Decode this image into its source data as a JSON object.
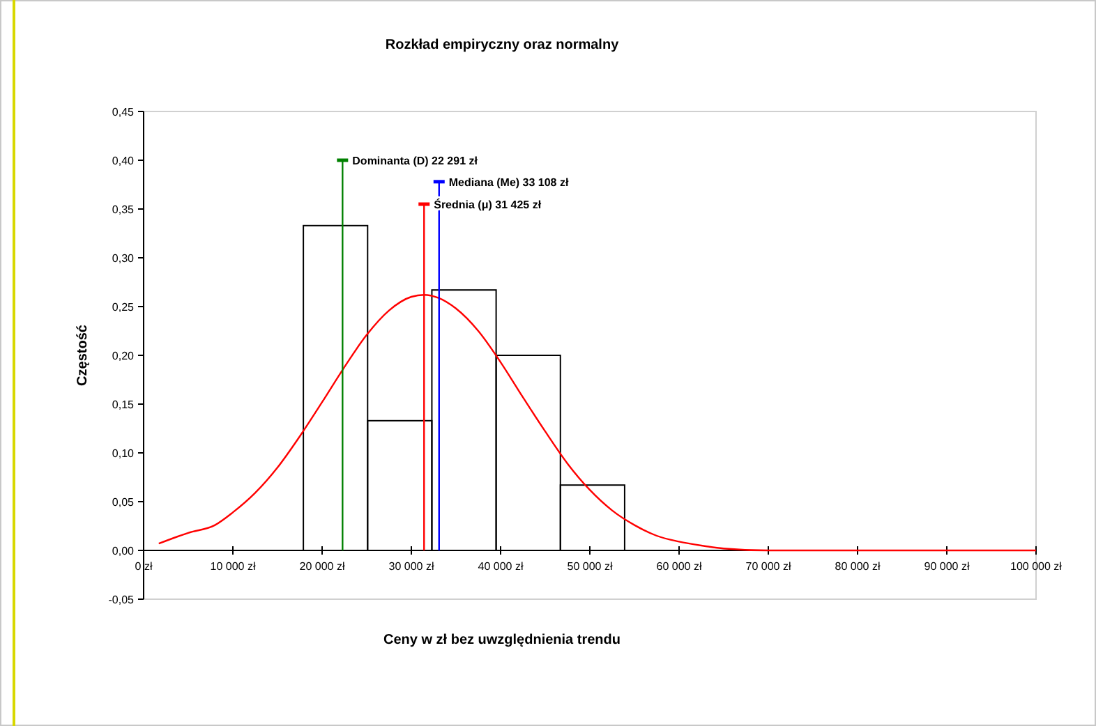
{
  "chart_data": {
    "type": "histogram",
    "title": "Rozkład empiryczny oraz normalny",
    "xlabel": "Ceny w zł bez uwzględnienia trendu",
    "ylabel": "Częstość",
    "bins": [
      17900,
      25100,
      32300,
      39500,
      46700,
      53900
    ],
    "values": [
      0.333,
      0.133,
      0.267,
      0.2,
      0.067
    ],
    "color": "#000000",
    "series": [
      {
        "type": "line",
        "color": "#ff0000",
        "x": [
          1700,
          5000,
          8000,
          10000,
          12500,
          15000,
          17500,
          20000,
          22500,
          25000,
          27500,
          30000,
          31425,
          33000,
          35000,
          37500,
          40000,
          42500,
          45000,
          47500,
          50000,
          52500,
          55000,
          57500,
          60000,
          62500,
          65000,
          70000,
          80000,
          90000,
          100000
        ],
        "values": [
          0.007,
          0.018,
          0.026,
          0.039,
          0.059,
          0.085,
          0.117,
          0.152,
          0.188,
          0.221,
          0.246,
          0.26,
          0.262,
          0.259,
          0.248,
          0.225,
          0.193,
          0.157,
          0.122,
          0.089,
          0.062,
          0.041,
          0.026,
          0.015,
          0.009,
          0.005,
          0.002,
          0,
          0,
          0,
          0
        ]
      },
      {
        "type": "line",
        "name": "Dominanta (D) 22 291 zł",
        "color": "#008000",
        "x": [
          22291,
          22291
        ],
        "values": [
          0,
          0.4
        ]
      },
      {
        "type": "line",
        "name": "Mediana (Me) 33 108 zł",
        "color": "#0000ff",
        "x": [
          33108,
          33108
        ],
        "values": [
          0,
          0.378
        ]
      },
      {
        "type": "line",
        "name": "Średnia (μ) 31 425 zł",
        "color": "#ff0000",
        "x": [
          31425,
          31425
        ],
        "values": [
          0,
          0.355
        ]
      }
    ],
    "xlim": [
      0,
      100000
    ],
    "ylim": [
      -0.05,
      0.45
    ],
    "xticks": [
      {
        "value": 0,
        "label": "0 zł"
      },
      {
        "value": 10000,
        "label": "10 000 zł"
      },
      {
        "value": 20000,
        "label": "20 000 zł"
      },
      {
        "value": 30000,
        "label": "30 000 zł"
      },
      {
        "value": 40000,
        "label": "40 000 zł"
      },
      {
        "value": 50000,
        "label": "50 000 zł"
      },
      {
        "value": 60000,
        "label": "60 000 zł"
      },
      {
        "value": 70000,
        "label": "70 000 zł"
      },
      {
        "value": 80000,
        "label": "80 000 zł"
      },
      {
        "value": 90000,
        "label": "90 000 zł"
      },
      {
        "value": 100000,
        "label": "100 000 zł"
      }
    ],
    "yticks": [
      {
        "value": -0.05,
        "label": "-0,05"
      },
      {
        "value": 0,
        "label": "0,00"
      },
      {
        "value": 0.05,
        "label": "0,05"
      },
      {
        "value": 0.1,
        "label": "0,10"
      },
      {
        "value": 0.15,
        "label": "0,15"
      },
      {
        "value": 0.2,
        "label": "0,20"
      },
      {
        "value": 0.25,
        "label": "0,25"
      },
      {
        "value": 0.3,
        "label": "0,30"
      },
      {
        "value": 0.35,
        "label": "0,35"
      },
      {
        "value": 0.4,
        "label": "0,40"
      },
      {
        "value": 0.45,
        "label": "0,45"
      }
    ],
    "grid": false,
    "legend": "top",
    "marker": "none",
    "line_style": "solid"
  }
}
